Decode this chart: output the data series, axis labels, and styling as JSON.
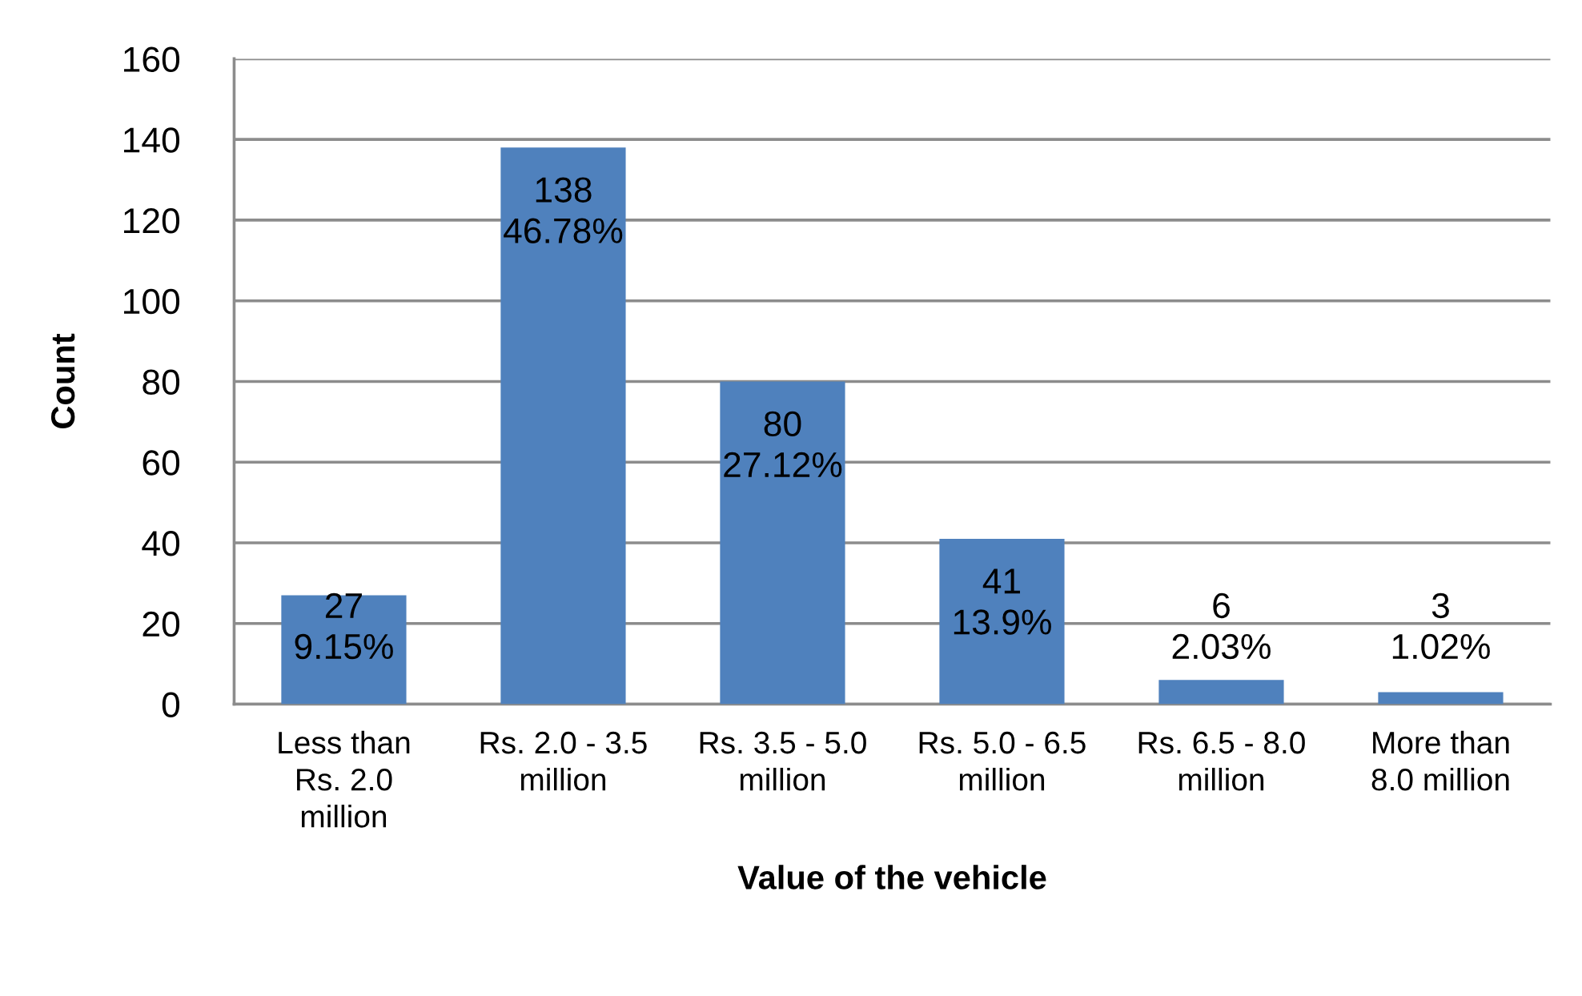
{
  "chart_data": {
    "type": "bar",
    "xlabel": "Value of the vehicle",
    "ylabel": "Count",
    "categories": [
      "Less than\nRs. 2.0\nmillion",
      "Rs. 2.0 - 3.5\nmillion",
      "Rs. 3.5 - 5.0\nmillion",
      "Rs. 5.0 - 6.5\nmillion",
      "Rs. 6.5 - 8.0\nmillion",
      "More than\n8.0 million"
    ],
    "values": [
      27,
      138,
      80,
      41,
      6,
      3
    ],
    "color": "#4f81bd",
    "value_labels": [
      "27\n9.15%",
      "138\n46.78%",
      "80\n27.12%",
      "41\n13.9%",
      "6\n2.03%",
      "3\n1.02%"
    ],
    "ylim": [
      0,
      160
    ],
    "yticks": [
      0,
      20,
      40,
      60,
      80,
      100,
      120,
      140,
      160
    ],
    "grid": "y"
  }
}
